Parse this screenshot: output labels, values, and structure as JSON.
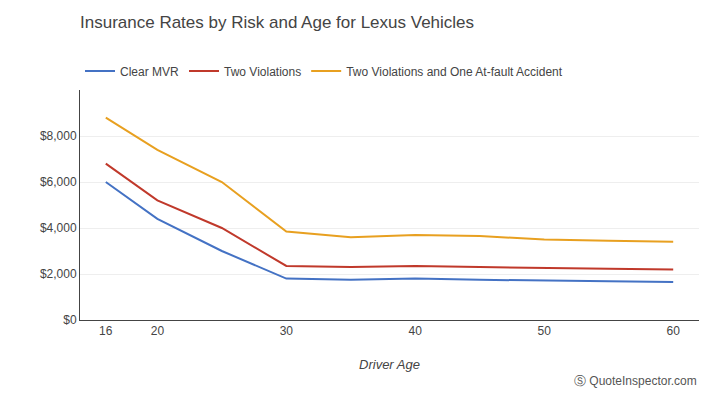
{
  "chart_data": {
    "type": "line",
    "title": "Insurance Rates by Risk and Age for Lexus Vehicles",
    "xlabel": "Driver Age",
    "x": [
      16,
      20,
      25,
      30,
      35,
      40,
      45,
      50,
      55,
      60
    ],
    "series": [
      {
        "name": "Clear MVR",
        "color": "#4472C4",
        "values": [
          6000,
          4400,
          3000,
          1800,
          1750,
          1800,
          1750,
          1700,
          1680,
          1650
        ]
      },
      {
        "name": "Two Violations",
        "color": "#C0392B",
        "values": [
          6800,
          5200,
          4000,
          2350,
          2300,
          2350,
          2300,
          2250,
          2230,
          2200
        ]
      },
      {
        "name": "Two Violations and One At-fault Accident",
        "color": "#E8A020",
        "values": [
          8800,
          7400,
          6000,
          3850,
          3600,
          3700,
          3650,
          3500,
          3450,
          3400
        ]
      }
    ],
    "xlim": [
      14,
      62
    ],
    "xticks": [
      16,
      20,
      30,
      40,
      50,
      60
    ],
    "ylim": [
      0,
      10000
    ],
    "yticks": [
      {
        "value": 0,
        "label": "$0"
      },
      {
        "value": 2000,
        "label": "$2,000"
      },
      {
        "value": 4000,
        "label": "$4,000"
      },
      {
        "value": 6000,
        "label": "$6,000"
      },
      {
        "value": 8000,
        "label": "$8,000"
      }
    ],
    "grid": "y",
    "legend": "top left",
    "annotations": [
      "Ⓢ QuoteInspector.com"
    ]
  }
}
